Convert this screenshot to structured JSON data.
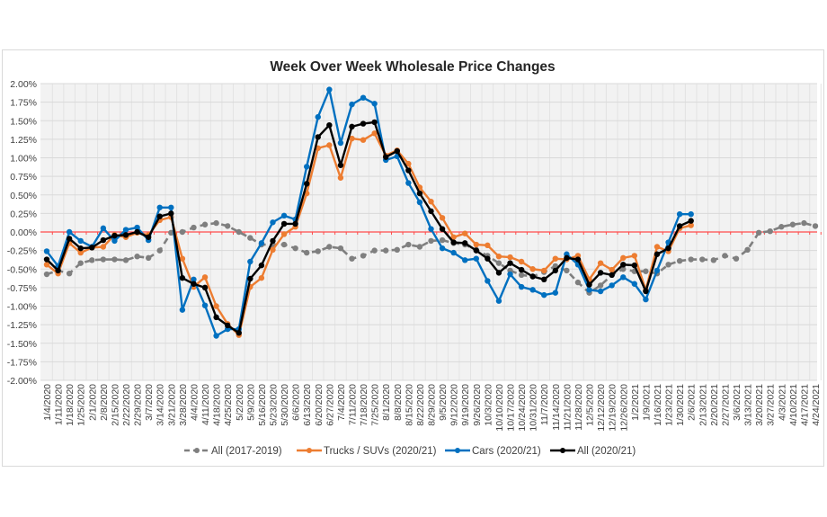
{
  "chart_data": {
    "type": "line",
    "title": "Week Over Week Wholesale Price Changes",
    "xlabel": "",
    "ylabel": "",
    "ylim": [
      -2.0,
      2.0
    ],
    "y_tick_step": 0.25,
    "y_tick_format": "percent, 2 decimals",
    "grid": true,
    "reference_line": {
      "value": 0,
      "color": "#ff4d4d"
    },
    "legend_position": "bottom",
    "categories": [
      "1/4/2020",
      "1/11/2020",
      "1/18/2020",
      "1/25/2020",
      "2/1/2020",
      "2/8/2020",
      "2/15/2020",
      "2/22/2020",
      "2/29/2020",
      "3/7/2020",
      "3/14/2020",
      "3/21/2020",
      "3/28/2020",
      "4/4/2020",
      "4/11/2020",
      "4/18/2020",
      "4/25/2020",
      "5/2/2020",
      "5/9/2020",
      "5/16/2020",
      "5/23/2020",
      "5/30/2020",
      "6/6/2020",
      "6/13/2020",
      "6/20/2020",
      "6/27/2020",
      "7/4/2020",
      "7/11/2020",
      "7/18/2020",
      "7/25/2020",
      "8/1/2020",
      "8/8/2020",
      "8/15/2020",
      "8/22/2020",
      "8/29/2020",
      "9/5/2020",
      "9/12/2020",
      "9/19/2020",
      "9/26/2020",
      "10/3/2020",
      "10/10/2020",
      "10/17/2020",
      "10/24/2020",
      "10/31/2020",
      "11/7/2020",
      "11/14/2020",
      "11/21/2020",
      "11/28/2020",
      "12/5/2020",
      "12/12/2020",
      "12/19/2020",
      "12/26/2020",
      "1/2/2021",
      "1/9/2021",
      "1/16/2021",
      "1/23/2021",
      "1/30/2021",
      "2/6/2021",
      "2/13/2021",
      "2/20/2021",
      "2/27/2021",
      "3/6/2021",
      "3/13/2021",
      "3/20/2021",
      "3/27/2021",
      "4/3/2021",
      "4/10/2021",
      "4/17/2021",
      "4/24/2021"
    ],
    "series": [
      {
        "name": "All (2017-2019)",
        "color": "#7f7f7f",
        "dashed": true,
        "values": [
          -0.57,
          -0.52,
          -0.56,
          -0.42,
          -0.38,
          -0.37,
          -0.37,
          -0.38,
          -0.33,
          -0.35,
          -0.25,
          -0.01,
          0.0,
          0.06,
          0.1,
          0.12,
          0.08,
          0.0,
          -0.08,
          -0.17,
          -0.17,
          -0.17,
          -0.22,
          -0.28,
          -0.26,
          -0.2,
          -0.22,
          -0.36,
          -0.32,
          -0.25,
          -0.25,
          -0.24,
          -0.17,
          -0.2,
          -0.12,
          -0.11,
          -0.15,
          -0.17,
          -0.24,
          -0.32,
          -0.42,
          -0.52,
          -0.58,
          -0.6,
          -0.54,
          -0.46,
          -0.52,
          -0.68,
          -0.82,
          -0.72,
          -0.58,
          -0.5,
          -0.53,
          -0.53,
          -0.56,
          -0.44,
          -0.39,
          -0.37,
          -0.37,
          -0.38,
          -0.32,
          -0.36,
          -0.24,
          -0.01,
          0.01,
          0.07,
          0.1,
          0.12,
          0.08
        ]
      },
      {
        "name": "Trucks / SUVs (2020/21)",
        "color": "#ed7d31",
        "dashed": false,
        "values": [
          -0.44,
          -0.56,
          -0.15,
          -0.28,
          -0.21,
          -0.2,
          -0.04,
          -0.07,
          -0.01,
          -0.04,
          0.16,
          0.2,
          -0.36,
          -0.74,
          -0.61,
          -1.0,
          -1.24,
          -1.39,
          -0.74,
          -0.62,
          -0.24,
          -0.03,
          0.07,
          0.52,
          1.13,
          1.17,
          0.73,
          1.26,
          1.24,
          1.33,
          1.03,
          1.1,
          0.92,
          0.6,
          0.41,
          0.19,
          -0.07,
          -0.02,
          -0.17,
          -0.18,
          -0.33,
          -0.34,
          -0.4,
          -0.5,
          -0.52,
          -0.36,
          -0.37,
          -0.32,
          -0.64,
          -0.42,
          -0.51,
          -0.35,
          -0.32,
          -0.78,
          -0.2,
          -0.26,
          0.05,
          0.09,
          null,
          null,
          null,
          null,
          null,
          null,
          null,
          null,
          null,
          null,
          null
        ]
      },
      {
        "name": "Cars (2020/21)",
        "color": "#0070c0",
        "dashed": false,
        "values": [
          -0.26,
          -0.46,
          0.0,
          -0.12,
          -0.2,
          0.05,
          -0.12,
          0.03,
          0.06,
          -0.11,
          0.33,
          0.33,
          -1.05,
          -0.64,
          -0.99,
          -1.4,
          -1.31,
          -1.31,
          -0.4,
          -0.15,
          0.13,
          0.22,
          0.17,
          0.88,
          1.55,
          1.92,
          1.2,
          1.72,
          1.81,
          1.73,
          0.97,
          1.02,
          0.66,
          0.4,
          0.04,
          -0.22,
          -0.28,
          -0.38,
          -0.36,
          -0.66,
          -0.93,
          -0.57,
          -0.74,
          -0.78,
          -0.85,
          -0.82,
          -0.3,
          -0.44,
          -0.78,
          -0.8,
          -0.72,
          -0.61,
          -0.7,
          -0.91,
          -0.52,
          -0.14,
          0.24,
          0.24,
          null,
          null,
          null,
          null,
          null,
          null,
          null,
          null,
          null,
          null,
          null
        ]
      },
      {
        "name": "All (2020/21)",
        "color": "#000000",
        "dashed": false,
        "values": [
          -0.37,
          -0.52,
          -0.09,
          -0.22,
          -0.21,
          -0.11,
          -0.05,
          -0.04,
          0.0,
          -0.07,
          0.21,
          0.25,
          -0.62,
          -0.7,
          -0.75,
          -1.15,
          -1.26,
          -1.36,
          -0.63,
          -0.45,
          -0.12,
          0.11,
          0.11,
          0.65,
          1.28,
          1.44,
          0.9,
          1.42,
          1.46,
          1.48,
          1.01,
          1.09,
          0.83,
          0.52,
          0.28,
          0.04,
          -0.14,
          -0.15,
          -0.25,
          -0.36,
          -0.55,
          -0.42,
          -0.51,
          -0.6,
          -0.64,
          -0.52,
          -0.35,
          -0.37,
          -0.71,
          -0.55,
          -0.58,
          -0.44,
          -0.45,
          -0.8,
          -0.3,
          -0.22,
          0.08,
          0.15,
          null,
          null,
          null,
          null,
          null,
          null,
          null,
          null,
          null,
          null,
          null
        ]
      }
    ]
  }
}
